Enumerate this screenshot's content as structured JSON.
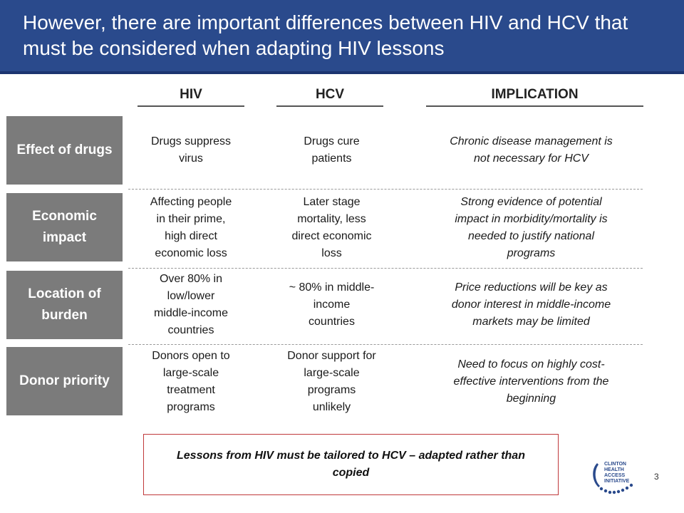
{
  "header": {
    "title": "However, there are important differences between HIV and HCV that must be considered when adapting HIV lessons"
  },
  "columns": {
    "hiv": "HIV",
    "hcv": "HCV",
    "implication": "IMPLICATION"
  },
  "rows": [
    {
      "label": "Effect of drugs",
      "hiv": "Drugs suppress\nvirus",
      "hcv": "Drugs cure\npatients",
      "implication": "Chronic disease management is\nnot necessary for HCV"
    },
    {
      "label": "Economic impact",
      "hiv": "Affecting people\nin their prime,\nhigh direct\neconomic loss",
      "hcv": "Later stage\nmortality, less\ndirect economic\nloss",
      "implication": "Strong evidence of potential\nimpact in morbidity/mortality is\nneeded to justify national\nprograms"
    },
    {
      "label": "Location of burden",
      "hiv": "Over 80% in\nlow/lower\nmiddle-income\ncountries",
      "hcv": "~ 80% in middle-\nincome\ncountries",
      "implication": "Price reductions will be key as\ndonor interest in middle-income\nmarkets may be limited"
    },
    {
      "label": "Donor priority",
      "hiv": "Donors open to\nlarge-scale\ntreatment\nprograms",
      "hcv": "Donor support for\nlarge-scale\nprograms\nunlikely",
      "implication": "Need to focus on highly cost-\neffective interventions from the\nbeginning"
    }
  ],
  "callout": {
    "text": "Lessons from HIV must be tailored to HCV – adapted rather than copied"
  },
  "footer": {
    "page_number": "3",
    "logo_text": "CLINTON\nHEALTH ACCESS\nINITIATIVE",
    "logo_color": "#2a4a8c"
  },
  "colors": {
    "title_bar": "#2a4a8c",
    "row_label_bg": "#7b7b7b",
    "callout_border": "#c0393b"
  }
}
